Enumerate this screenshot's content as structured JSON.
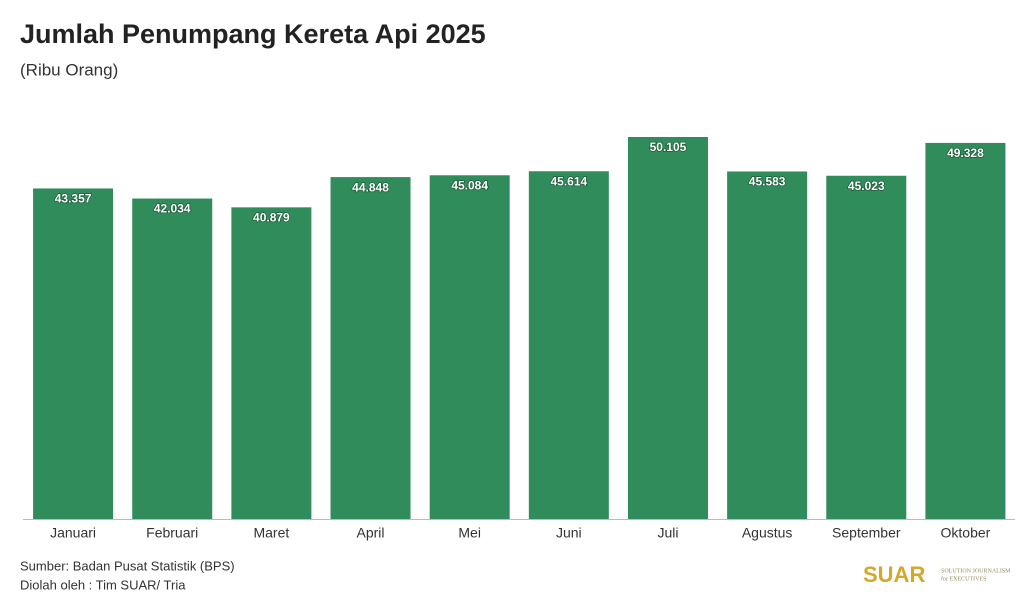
{
  "chart_data": {
    "type": "bar",
    "title": "Jumlah Penumpang Kereta Api 2025",
    "subtitle": "(Ribu Orang)",
    "categories": [
      "Januari",
      "Februari",
      "Maret",
      "April",
      "Mei",
      "Juni",
      "Juli",
      "Agustus",
      "September",
      "Oktober"
    ],
    "values": [
      43357,
      42034,
      40879,
      44848,
      45084,
      45614,
      50105,
      45583,
      45023,
      49328
    ],
    "value_labels": [
      "43.357",
      "42.034",
      "40.879",
      "44.848",
      "45.084",
      "45.614",
      "50.105",
      "45.583",
      "45.023",
      "49.328"
    ],
    "color": "#318c5c",
    "source": "Sumber: Badan Pusat Statistik (BPS)",
    "credit": "Diolah oleh : Tim SUAR/ Tria",
    "logo": {
      "name": "SUAR",
      "tagline_1": "SOLUTION JOURNALISM",
      "tagline_2": "for EXECUTIVES"
    }
  }
}
